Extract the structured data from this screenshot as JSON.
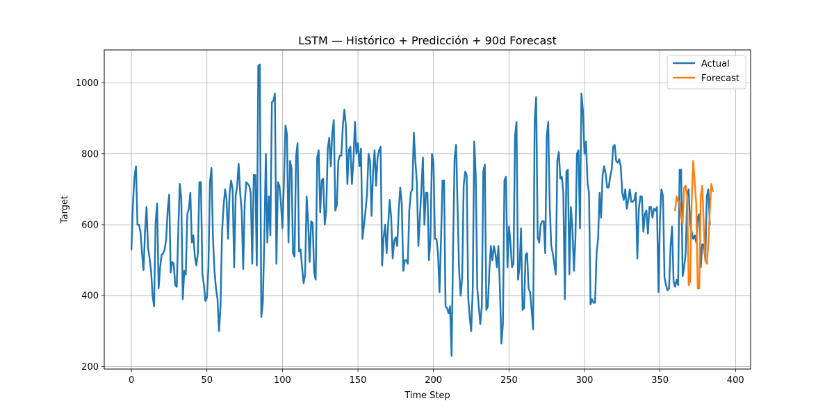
{
  "chart_data": {
    "type": "line",
    "title": "LSTM — Histórico + Predicción + 90d Forecast",
    "xlabel": "Time Step",
    "ylabel": "Target",
    "xlim": [
      -18,
      410
    ],
    "ylim": [
      193,
      1093
    ],
    "xticks": [
      0,
      50,
      100,
      150,
      200,
      250,
      300,
      350,
      400
    ],
    "yticks": [
      200,
      400,
      600,
      800,
      1000
    ],
    "grid": true,
    "legend_position": "top-right",
    "series": [
      {
        "name": "Actual",
        "color": "#1f77b4",
        "x_start": 0,
        "values": [
          530,
          660,
          735,
          765,
          600,
          600,
          580,
          520,
          472,
          580,
          650,
          535,
          505,
          470,
          400,
          370,
          605,
          660,
          420,
          480,
          515,
          520,
          530,
          560,
          640,
          685,
          465,
          495,
          490,
          430,
          425,
          580,
          715,
          675,
          390,
          470,
          460,
          630,
          645,
          690,
          550,
          570,
          510,
          485,
          520,
          720,
          720,
          460,
          430,
          385,
          395,
          480,
          720,
          760,
          560,
          470,
          420,
          390,
          300,
          370,
          580,
          650,
          700,
          670,
          560,
          690,
          725,
          700,
          480,
          680,
          710,
          772,
          690,
          640,
          475,
          660,
          720,
          715,
          710,
          690,
          490,
          740,
          740,
          485,
          1048,
          1052,
          340,
          380,
          560,
          800,
          550,
          680,
          570,
          945,
          950,
          970,
          490,
          720,
          710,
          660,
          590,
          720,
          880,
          855,
          550,
          780,
          760,
          520,
          510,
          790,
          830,
          525,
          530,
          480,
          435,
          460,
          680,
          610,
          495,
          610,
          605,
          465,
          445,
          790,
          810,
          635,
          725,
          730,
          600,
          640,
          815,
          845,
          765,
          860,
          895,
          640,
          655,
          780,
          795,
          795,
          880,
          925,
          880,
          715,
          810,
          820,
          715,
          780,
          890,
          800,
          830,
          765,
          815,
          560,
          600,
          640,
          685,
          800,
          780,
          625,
          750,
          810,
          710,
          790,
          810,
          820,
          485,
          565,
          600,
          520,
          600,
          670,
          620,
          505,
          555,
          565,
          540,
          640,
          705,
          660,
          470,
          500,
          500,
          490,
          640,
          690,
          700,
          860,
          780,
          720,
          540,
          620,
          700,
          790,
          600,
          690,
          690,
          500,
          560,
          800,
          775,
          560,
          560,
          520,
          410,
          560,
          725,
          725,
          370,
          365,
          350,
          370,
          230,
          540,
          790,
          825,
          640,
          470,
          400,
          450,
          710,
          750,
          740,
          395,
          340,
          300,
          420,
          835,
          740,
          420,
          370,
          320,
          370,
          750,
          770,
          360,
          370,
          470,
          540,
          500,
          540,
          520,
          480,
          540,
          420,
          265,
          320,
          725,
          735,
          480,
          595,
          550,
          480,
          490,
          850,
          890,
          445,
          480,
          590,
          360,
          365,
          515,
          520,
          420,
          410,
          360,
          305,
          890,
          960,
          565,
          550,
          600,
          610,
          610,
          520,
          850,
          890,
          650,
          540,
          520,
          490,
          460,
          780,
          805,
          730,
          735,
          690,
          390,
          750,
          755,
          460,
          650,
          590,
          470,
          560,
          800,
          810,
          590,
          970,
          920,
          800,
          835,
          720,
          690,
          375,
          390,
          380,
          380,
          520,
          560,
          690,
          620,
          740,
          765,
          745,
          705,
          705,
          735,
          755,
          820,
          825,
          780,
          775,
          785,
          765,
          690,
          670,
          700,
          645,
          670,
          700,
          665,
          665,
          670,
          690,
          505,
          645,
          680,
          680,
          580,
          630,
          640,
          575,
          650,
          650,
          620,
          645,
          640,
          650,
          410,
          620,
          700,
          680,
          450,
          430,
          415,
          420,
          540,
          595,
          440,
          425,
          445,
          430,
          755,
          755,
          455,
          480,
          520,
          680,
          700,
          600,
          580,
          560,
          570,
          550,
          620,
          630,
          480,
          545,
          545,
          500,
          680,
          700,
          600
        ]
      },
      {
        "name": "Forecast",
        "color": "#ff7f0e",
        "x_start": 360,
        "values": [
          640,
          680,
          665,
          665,
          620,
          605,
          705,
          710,
          680,
          430,
          440,
          670,
          780,
          720,
          660,
          420,
          420,
          680,
          710,
          600,
          500,
          490,
          545,
          640,
          715,
          695
        ]
      }
    ]
  }
}
